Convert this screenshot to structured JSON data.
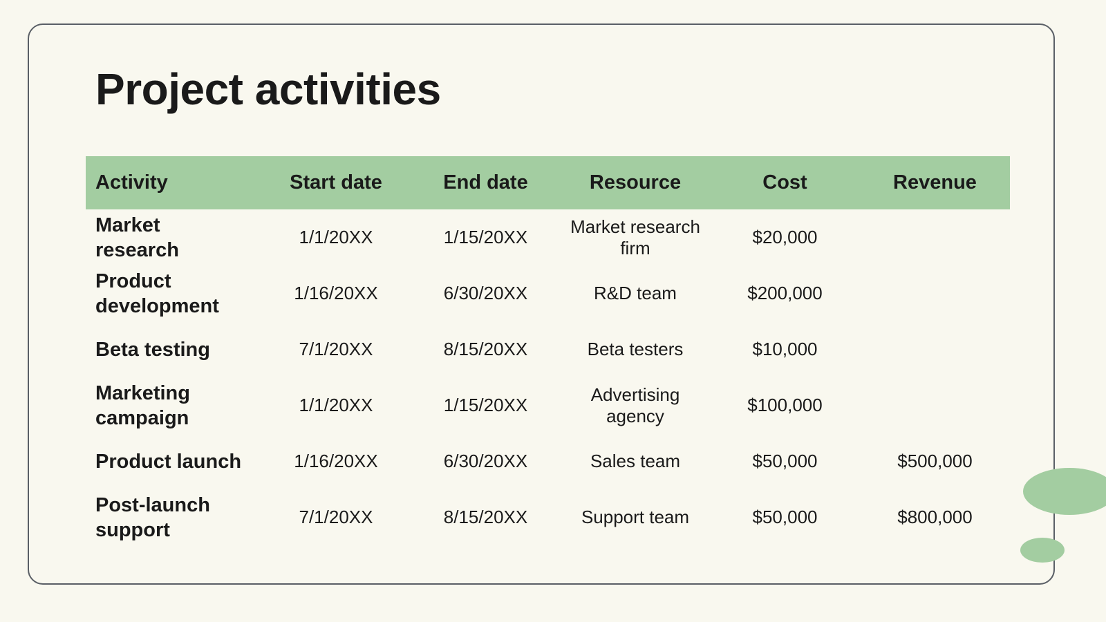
{
  "title": "Project activities",
  "table": {
    "columns": [
      "Activity",
      "Start date",
      "End date",
      "Resource",
      "Cost",
      "Revenue"
    ],
    "rows": [
      [
        "Market research",
        "1/1/20XX",
        "1/15/20XX",
        "Market research firm",
        "$20,000"
      ],
      [
        "Product development",
        "1/16/20XX",
        "6/30/20XX",
        "R&D team",
        "$200,000"
      ],
      [
        "Beta testing",
        "7/1/20XX",
        "8/15/20XX",
        "Beta testers",
        "$10,000"
      ],
      [
        "Marketing campaign",
        "1/1/20XX",
        "1/15/20XX",
        "Advertising agency",
        "$100,000"
      ],
      [
        "Product launch",
        "1/16/20XX",
        "6/30/20XX",
        "Sales team",
        "$50,000",
        "$500,000"
      ],
      [
        "Post-launch support",
        "7/1/20XX",
        "8/15/20XX",
        "Support team",
        "$50,000",
        "$800,000"
      ]
    ]
  }
}
